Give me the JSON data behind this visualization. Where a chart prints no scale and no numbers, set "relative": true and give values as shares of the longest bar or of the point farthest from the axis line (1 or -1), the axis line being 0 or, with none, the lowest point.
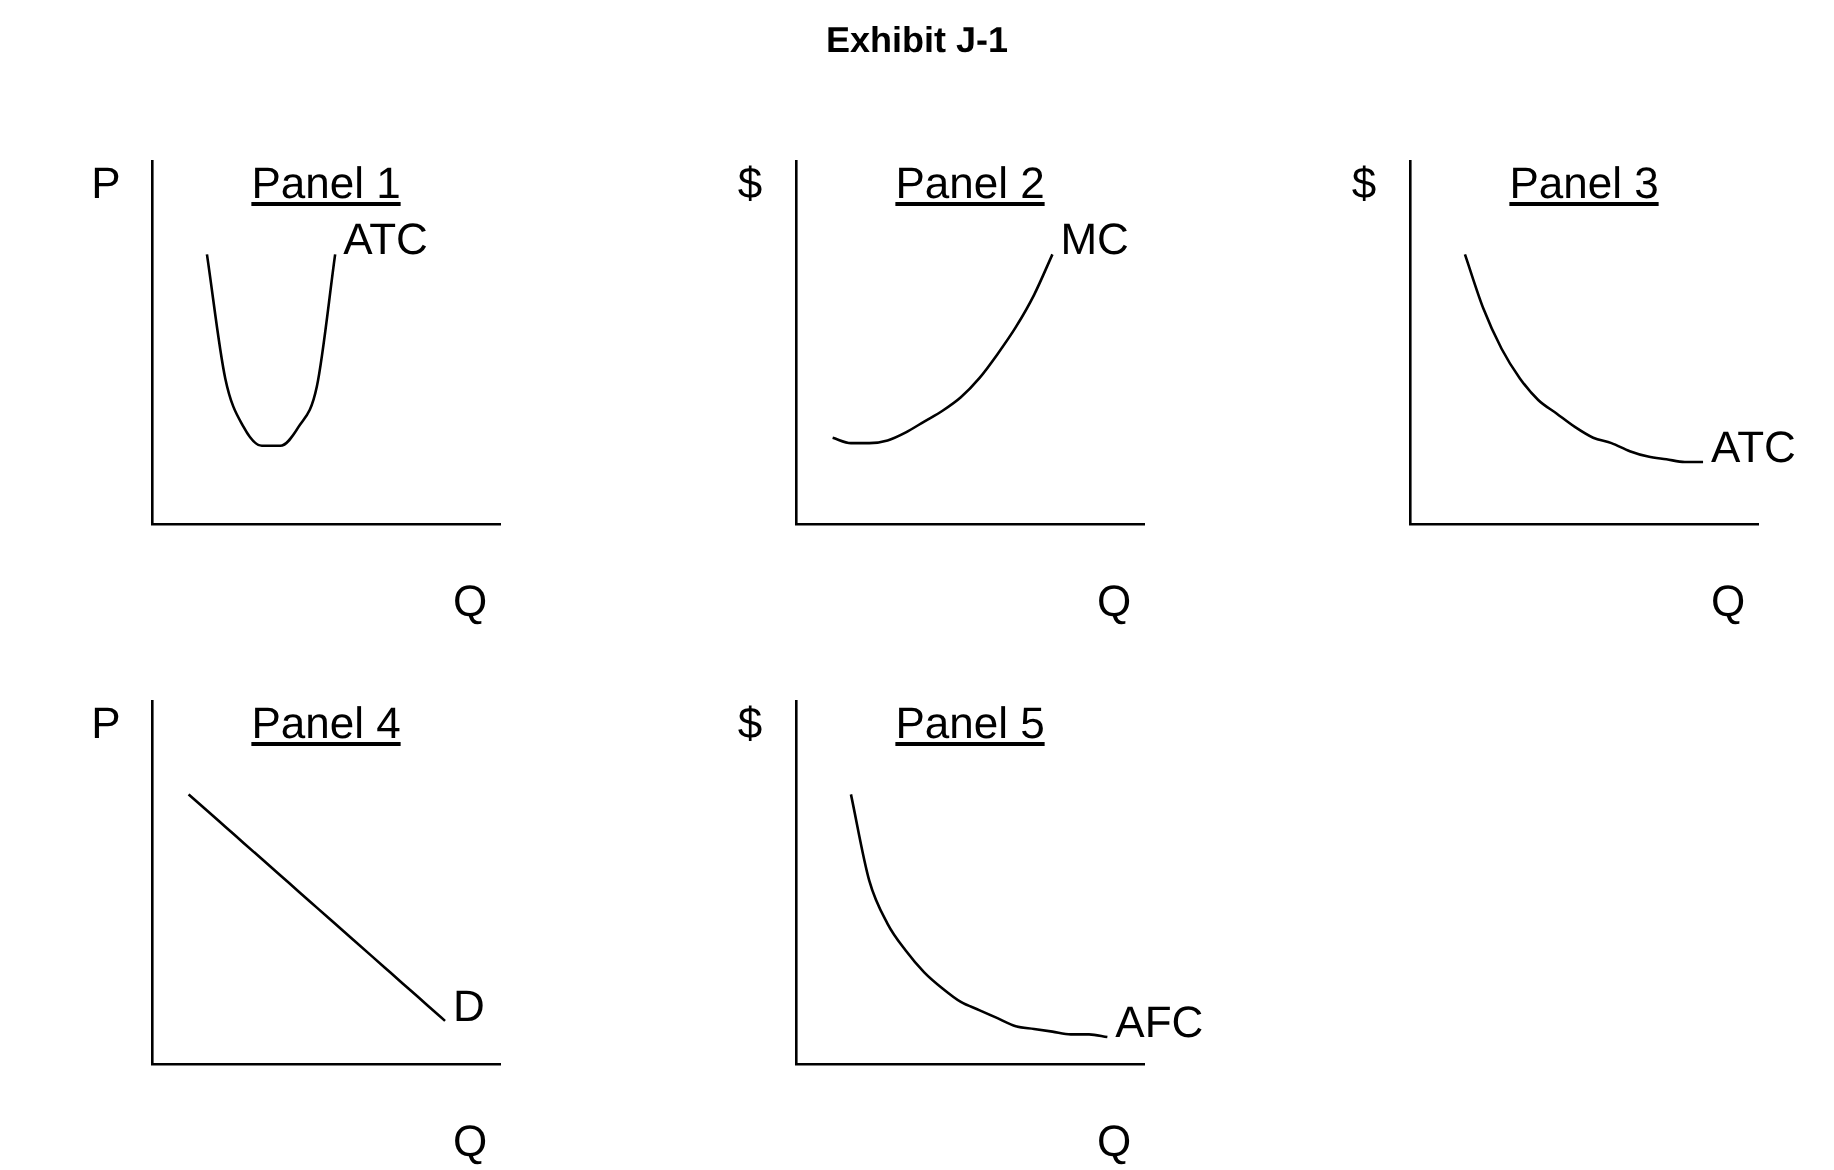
{
  "chart_data": [
    {
      "type": "line",
      "relative": true,
      "title": "Panel 1",
      "xlabel": "Q",
      "ylabel": "P",
      "marker": "none",
      "annotations": [
        "Exhibit J-1"
      ],
      "categories": [
        null,
        null,
        null,
        null,
        null,
        null,
        null,
        null,
        null,
        null,
        null,
        null,
        null,
        null,
        null,
        null,
        null,
        null,
        null,
        null
      ],
      "series": [
        {
          "name": "ATC",
          "color": "#000000",
          "values": [
            null,
            null,
            null,
            1.0,
            0.54,
            0.36,
            0.29,
            0.29,
            0.36,
            0.51,
            1.0,
            null,
            null,
            null,
            null,
            null,
            null,
            null,
            null,
            null
          ]
        }
      ]
    },
    {
      "type": "line",
      "relative": true,
      "title": "Panel 2",
      "xlabel": "Q",
      "ylabel": "$",
      "marker": "none",
      "categories": [
        null,
        null,
        null,
        null,
        null,
        null,
        null,
        null,
        null,
        null,
        null,
        null,
        null,
        null,
        null,
        null,
        null,
        null,
        null,
        null
      ],
      "series": [
        {
          "name": "MC",
          "color": "#000000",
          "values": [
            null,
            null,
            0.32,
            0.3,
            0.3,
            0.31,
            0.34,
            0.38,
            0.42,
            0.47,
            0.54,
            0.63,
            0.73,
            0.85,
            1.0,
            null,
            null,
            null,
            null,
            null
          ]
        }
      ]
    },
    {
      "type": "line",
      "relative": true,
      "title": "Panel 3",
      "xlabel": "Q",
      "ylabel": "$",
      "marker": "none",
      "categories": [
        null,
        null,
        null,
        null,
        null,
        null,
        null,
        null,
        null,
        null,
        null,
        null,
        null,
        null,
        null,
        null,
        null,
        null,
        null,
        null
      ],
      "series": [
        {
          "name": "ATC",
          "color": "#000000",
          "values": [
            null,
            null,
            null,
            1.0,
            0.8,
            0.65,
            0.54,
            0.46,
            0.41,
            0.36,
            0.32,
            0.3,
            0.27,
            0.25,
            0.24,
            0.23,
            0.23,
            null,
            null,
            null
          ]
        }
      ]
    },
    {
      "type": "line",
      "relative": true,
      "title": "Panel 4",
      "xlabel": "Q",
      "ylabel": "P",
      "marker": "none",
      "categories": [
        null,
        null,
        null,
        null,
        null,
        null,
        null,
        null,
        null,
        null,
        null,
        null,
        null,
        null,
        null,
        null,
        null,
        null,
        null,
        null
      ],
      "series": [
        {
          "name": "D",
          "color": "#000000",
          "values": [
            null,
            null,
            1.0,
            0.94,
            0.88,
            0.82,
            0.76,
            0.7,
            0.64,
            0.58,
            0.52,
            0.46,
            0.4,
            0.34,
            0.28,
            0.22,
            0.16,
            null,
            null,
            null
          ]
        }
      ]
    },
    {
      "type": "line",
      "relative": true,
      "title": "Panel 5",
      "xlabel": "Q",
      "ylabel": "$",
      "marker": "none",
      "categories": [
        null,
        null,
        null,
        null,
        null,
        null,
        null,
        null,
        null,
        null,
        null,
        null,
        null,
        null,
        null,
        null,
        null,
        null,
        null,
        null
      ],
      "series": [
        {
          "name": "AFC",
          "color": "#000000",
          "values": [
            null,
            null,
            null,
            1.0,
            0.68,
            0.52,
            0.42,
            0.34,
            0.28,
            0.23,
            0.2,
            0.17,
            0.14,
            0.13,
            0.12,
            0.11,
            0.11,
            0.1,
            null,
            null
          ]
        }
      ]
    }
  ]
}
